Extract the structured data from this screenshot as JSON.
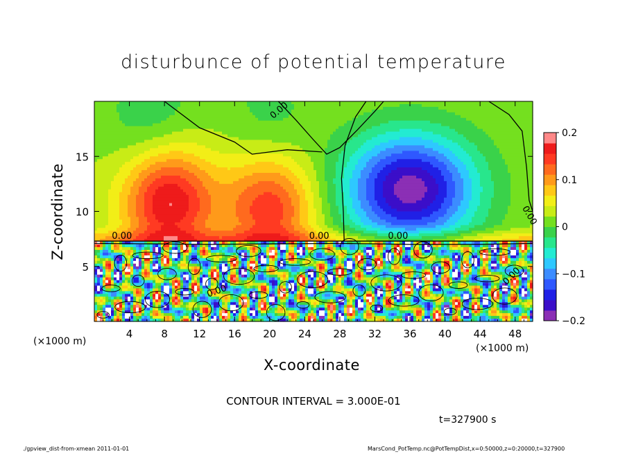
{
  "chart_data": {
    "type": "heatmap",
    "title": "disturbunce of potential temperature",
    "xlabel": "X-coordinate",
    "ylabel": "Z-coordinate",
    "x_unit_left": "(×1000 m)",
    "x_unit_right": "(×1000 m)",
    "xlim": [
      0,
      50
    ],
    "ylim": [
      0,
      20
    ],
    "x_ticks": [
      4,
      8,
      12,
      16,
      20,
      24,
      28,
      32,
      36,
      40,
      44,
      48
    ],
    "y_ticks": [
      5,
      10,
      15
    ],
    "colorbar": {
      "range": [
        -0.2,
        0.2
      ],
      "ticks": [
        "0.2",
        "0.1",
        "0",
        "−0.1",
        "−0.2"
      ],
      "colors": [
        "#8b2fb5",
        "#3b0ec9",
        "#2020e6",
        "#2f58ff",
        "#3c8cff",
        "#2ec8ff",
        "#23ebd2",
        "#28e68c",
        "#3ad24a",
        "#74e01f",
        "#c8ec16",
        "#f2ee17",
        "#ffc816",
        "#ff9a1a",
        "#ff6a1e",
        "#ff3a22",
        "#ee1b1b",
        "#ff8888"
      ]
    },
    "contour_labels": [
      "0.00",
      "0.00",
      "0.00",
      "0.00",
      "0.00",
      "0.00",
      "0.00"
    ],
    "contour_interval_text": "CONTOUR INTERVAL = 3.000E-01",
    "time_text": "t=327900 s",
    "upper_features": [
      {
        "kind": "warm",
        "x": 8.5,
        "z": 10.8,
        "amp": 0.16
      },
      {
        "kind": "warm",
        "x": 20.0,
        "z": 10.2,
        "amp": 0.13
      },
      {
        "kind": "cold",
        "x": 36.0,
        "z": 12.0,
        "amp": -0.21
      },
      {
        "kind": "cold",
        "x": 6.5,
        "z": 18.5,
        "amp": -0.04
      },
      {
        "kind": "cold",
        "x": 20.0,
        "z": 18.5,
        "amp": -0.03
      }
    ],
    "interface_z": 7.3
  },
  "footer": {
    "left": "./gpview_dist-from-xmean  2011-01-01",
    "right": "MarsCond_PotTemp.nc@PotTempDist,x=0:50000,z=0:20000,t=327900"
  }
}
